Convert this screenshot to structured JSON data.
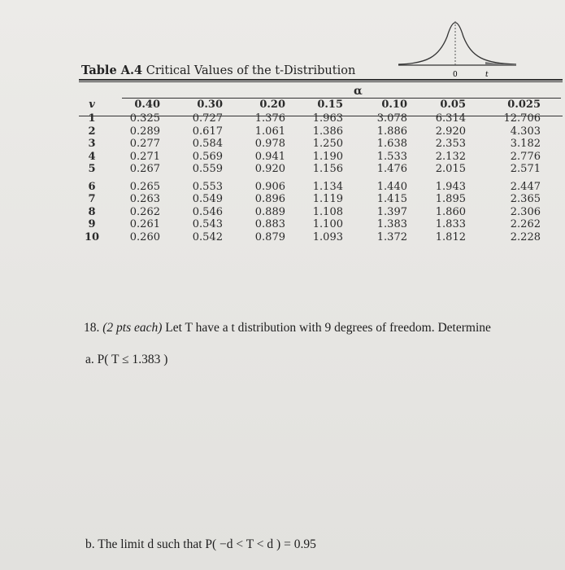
{
  "table": {
    "title_bold": "Table A.4",
    "title_rest": " Critical Values of the t-Distribution",
    "alpha_label": "α",
    "nu_label": "v",
    "columns": [
      "0.40",
      "0.30",
      "0.20",
      "0.15",
      "0.10",
      "0.05",
      "0.025"
    ],
    "rows": [
      [
        "1",
        "0.325",
        "0.727",
        "1.376",
        "1.963",
        "3.078",
        "6.314",
        "12.706"
      ],
      [
        "2",
        "0.289",
        "0.617",
        "1.061",
        "1.386",
        "1.886",
        "2.920",
        "4.303"
      ],
      [
        "3",
        "0.277",
        "0.584",
        "0.978",
        "1.250",
        "1.638",
        "2.353",
        "3.182"
      ],
      [
        "4",
        "0.271",
        "0.569",
        "0.941",
        "1.190",
        "1.533",
        "2.132",
        "2.776"
      ],
      [
        "5",
        "0.267",
        "0.559",
        "0.920",
        "1.156",
        "1.476",
        "2.015",
        "2.571"
      ],
      [
        "6",
        "0.265",
        "0.553",
        "0.906",
        "1.134",
        "1.440",
        "1.943",
        "2.447"
      ],
      [
        "7",
        "0.263",
        "0.549",
        "0.896",
        "1.119",
        "1.415",
        "1.895",
        "2.365"
      ],
      [
        "8",
        "0.262",
        "0.546",
        "0.889",
        "1.108",
        "1.397",
        "1.860",
        "2.306"
      ],
      [
        "9",
        "0.261",
        "0.543",
        "0.883",
        "1.100",
        "1.383",
        "1.833",
        "2.262"
      ],
      [
        "10",
        "0.260",
        "0.542",
        "0.879",
        "1.093",
        "1.372",
        "1.812",
        "2.228"
      ]
    ]
  },
  "figure": {
    "zero_label": "0",
    "t_label": "t",
    "curve": "t-density-with-shaded-right-tail"
  },
  "question": {
    "number": "18.",
    "points": "(2 pts each)",
    "text": "Let T have a t distribution with 9 degrees of freedom. Determine",
    "part_a": "a.   P( T ≤ 1.383 )",
    "part_b": "b.   The limit d such that P( −d < T < d ) = 0.95"
  }
}
